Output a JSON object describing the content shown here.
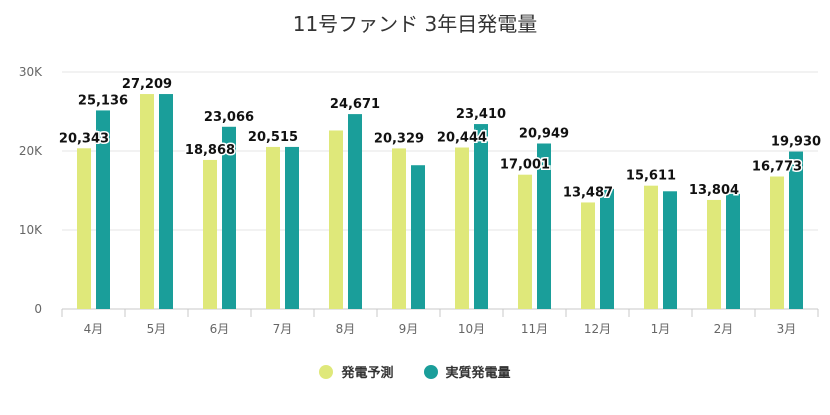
{
  "chart_data": {
    "type": "bar",
    "title": "11号ファンド 3年目発電量",
    "categories": [
      "4月",
      "5月",
      "6月",
      "7月",
      "8月",
      "9月",
      "10月",
      "11月",
      "12月",
      "1月",
      "2月",
      "3月"
    ],
    "series": [
      {
        "name": "発電予測",
        "color": "#dfe87a",
        "values": [
          20343,
          27209,
          18868,
          20515,
          22600,
          20329,
          20444,
          17001,
          13487,
          15611,
          13804,
          16773
        ]
      },
      {
        "name": "実質発電量",
        "color": "#1a9e9a",
        "values": [
          25136,
          27209,
          23066,
          20515,
          24671,
          18200,
          23410,
          20949,
          15200,
          14900,
          14900,
          19930
        ]
      }
    ],
    "data_labels": [
      {
        "category": "4月",
        "text": "20,343",
        "series": 0
      },
      {
        "category": "4月",
        "text": "25,136",
        "series": 1
      },
      {
        "category": "5月",
        "text": "27,209",
        "series": 0
      },
      {
        "category": "6月",
        "text": "18,868",
        "series": 0
      },
      {
        "category": "6月",
        "text": "23,066",
        "series": 1
      },
      {
        "category": "7月",
        "text": "20,515",
        "series": 0
      },
      {
        "category": "8月",
        "text": "24,671",
        "series": 1
      },
      {
        "category": "9月",
        "text": "20,329",
        "series": 0
      },
      {
        "category": "10月",
        "text": "20,444",
        "series": 0
      },
      {
        "category": "10月",
        "text": "23,410",
        "series": 1
      },
      {
        "category": "11月",
        "text": "17,001",
        "series": 0
      },
      {
        "category": "11月",
        "text": "20,949",
        "series": 1
      },
      {
        "category": "12月",
        "text": "13,487",
        "series": 0
      },
      {
        "category": "1月",
        "text": "15,611",
        "series": 0
      },
      {
        "category": "2月",
        "text": "13,804",
        "series": 0
      },
      {
        "category": "3月",
        "text": "16,773",
        "series": 0
      },
      {
        "category": "3月",
        "text": "19,930",
        "series": 1
      }
    ],
    "yticks": [
      "0",
      "10K",
      "20K",
      "30K"
    ],
    "ylim": [
      0,
      30000
    ],
    "grid": true,
    "legend": "bottom"
  }
}
